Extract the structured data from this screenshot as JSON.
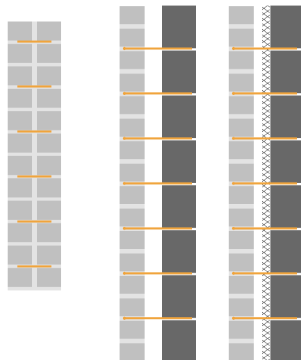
{
  "colors": {
    "background": "#ffffff",
    "brick": "#c0c0c0",
    "mortar": "#e3e3e3",
    "insulation_block": "#686868",
    "tie": "#f0a43c",
    "mesh_line": "#333333"
  },
  "wall_sections": [
    {
      "name": "double-leaf-brick-wall",
      "description_visible": false,
      "leaves": [
        "brick",
        "brick"
      ],
      "brick_courses": 12,
      "tie_count": 6
    },
    {
      "name": "brick-and-block-cavity-wall",
      "description_visible": false,
      "leaves": [
        "brick",
        "cavity",
        "insulation-block"
      ],
      "brick_courses": 16,
      "block_units": 8,
      "tie_count": 7
    },
    {
      "name": "brick-mesh-block-wall",
      "description_visible": false,
      "leaves": [
        "brick",
        "cavity",
        "mesh-layer",
        "insulation-block"
      ],
      "brick_courses": 16,
      "block_units": 8,
      "tie_count": 7
    }
  ]
}
